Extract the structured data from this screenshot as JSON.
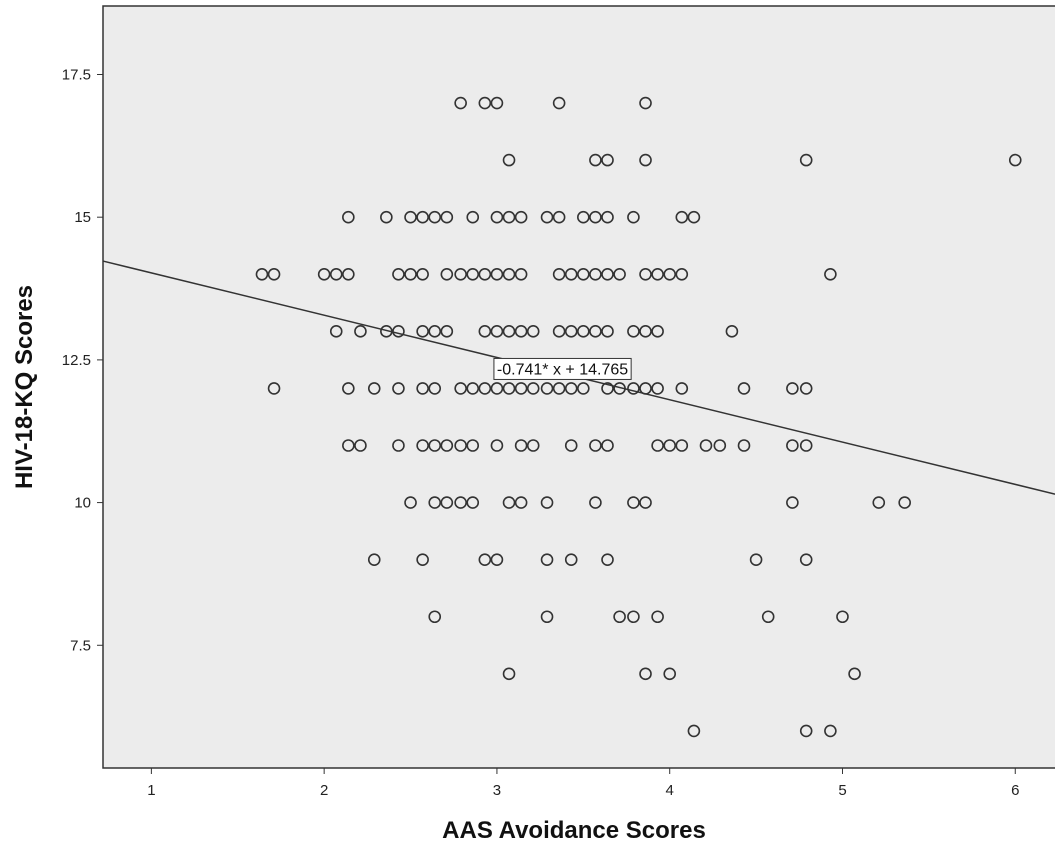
{
  "chart_data": {
    "type": "scatter",
    "title": "",
    "xlabel": "AAS Avoidance Scores",
    "ylabel": "HIV-18-KQ Scores",
    "xlim": [
      0.72,
      6.23
    ],
    "ylim": [
      5.35,
      18.7
    ],
    "x_ticks": [
      1,
      2,
      3,
      4,
      5,
      6
    ],
    "y_ticks": [
      7.5,
      10,
      12.5,
      15,
      17.5
    ],
    "x_tick_labels": [
      "1",
      "2",
      "3",
      "4",
      "5",
      "6"
    ],
    "y_tick_labels": [
      "7.5",
      "10",
      "12.5",
      "15",
      "17.5"
    ],
    "grid": false,
    "colors": {
      "plot_background": "#ececec",
      "marker_stroke": "#333333",
      "line": "#333333"
    },
    "fit_line": {
      "slope": -0.741,
      "intercept": 14.765,
      "label": "-0.741* x + 14.765",
      "label_x": 3.0,
      "label_y": 12.35
    },
    "points": [
      {
        "x": 2.79,
        "y": 17
      },
      {
        "x": 2.93,
        "y": 17
      },
      {
        "x": 3.0,
        "y": 17
      },
      {
        "x": 3.36,
        "y": 17
      },
      {
        "x": 3.86,
        "y": 17
      },
      {
        "x": 3.07,
        "y": 16
      },
      {
        "x": 3.57,
        "y": 16
      },
      {
        "x": 3.64,
        "y": 16
      },
      {
        "x": 3.86,
        "y": 16
      },
      {
        "x": 4.79,
        "y": 16
      },
      {
        "x": 6.0,
        "y": 16
      },
      {
        "x": 2.14,
        "y": 15
      },
      {
        "x": 2.36,
        "y": 15
      },
      {
        "x": 2.5,
        "y": 15
      },
      {
        "x": 2.57,
        "y": 15
      },
      {
        "x": 2.64,
        "y": 15
      },
      {
        "x": 2.71,
        "y": 15
      },
      {
        "x": 2.86,
        "y": 15
      },
      {
        "x": 3.0,
        "y": 15
      },
      {
        "x": 3.07,
        "y": 15
      },
      {
        "x": 3.14,
        "y": 15
      },
      {
        "x": 3.29,
        "y": 15
      },
      {
        "x": 3.36,
        "y": 15
      },
      {
        "x": 3.5,
        "y": 15
      },
      {
        "x": 3.57,
        "y": 15
      },
      {
        "x": 3.64,
        "y": 15
      },
      {
        "x": 3.79,
        "y": 15
      },
      {
        "x": 4.07,
        "y": 15
      },
      {
        "x": 4.14,
        "y": 15
      },
      {
        "x": 1.64,
        "y": 14
      },
      {
        "x": 1.71,
        "y": 14
      },
      {
        "x": 2.0,
        "y": 14
      },
      {
        "x": 2.07,
        "y": 14
      },
      {
        "x": 2.14,
        "y": 14
      },
      {
        "x": 2.43,
        "y": 14
      },
      {
        "x": 2.5,
        "y": 14
      },
      {
        "x": 2.57,
        "y": 14
      },
      {
        "x": 2.71,
        "y": 14
      },
      {
        "x": 2.79,
        "y": 14
      },
      {
        "x": 2.86,
        "y": 14
      },
      {
        "x": 2.93,
        "y": 14
      },
      {
        "x": 3.0,
        "y": 14
      },
      {
        "x": 3.07,
        "y": 14
      },
      {
        "x": 3.14,
        "y": 14
      },
      {
        "x": 3.36,
        "y": 14
      },
      {
        "x": 3.43,
        "y": 14
      },
      {
        "x": 3.5,
        "y": 14
      },
      {
        "x": 3.57,
        "y": 14
      },
      {
        "x": 3.64,
        "y": 14
      },
      {
        "x": 3.71,
        "y": 14
      },
      {
        "x": 3.86,
        "y": 14
      },
      {
        "x": 3.93,
        "y": 14
      },
      {
        "x": 4.0,
        "y": 14
      },
      {
        "x": 4.07,
        "y": 14
      },
      {
        "x": 4.93,
        "y": 14
      },
      {
        "x": 2.07,
        "y": 13
      },
      {
        "x": 2.21,
        "y": 13
      },
      {
        "x": 2.36,
        "y": 13
      },
      {
        "x": 2.43,
        "y": 13
      },
      {
        "x": 2.57,
        "y": 13
      },
      {
        "x": 2.64,
        "y": 13
      },
      {
        "x": 2.71,
        "y": 13
      },
      {
        "x": 2.93,
        "y": 13
      },
      {
        "x": 3.0,
        "y": 13
      },
      {
        "x": 3.07,
        "y": 13
      },
      {
        "x": 3.14,
        "y": 13
      },
      {
        "x": 3.21,
        "y": 13
      },
      {
        "x": 3.36,
        "y": 13
      },
      {
        "x": 3.43,
        "y": 13
      },
      {
        "x": 3.5,
        "y": 13
      },
      {
        "x": 3.57,
        "y": 13
      },
      {
        "x": 3.64,
        "y": 13
      },
      {
        "x": 3.79,
        "y": 13
      },
      {
        "x": 3.86,
        "y": 13
      },
      {
        "x": 3.93,
        "y": 13
      },
      {
        "x": 4.36,
        "y": 13
      },
      {
        "x": 1.71,
        "y": 12
      },
      {
        "x": 2.14,
        "y": 12
      },
      {
        "x": 2.29,
        "y": 12
      },
      {
        "x": 2.43,
        "y": 12
      },
      {
        "x": 2.57,
        "y": 12
      },
      {
        "x": 2.64,
        "y": 12
      },
      {
        "x": 2.79,
        "y": 12
      },
      {
        "x": 2.86,
        "y": 12
      },
      {
        "x": 2.93,
        "y": 12
      },
      {
        "x": 3.0,
        "y": 12
      },
      {
        "x": 3.07,
        "y": 12
      },
      {
        "x": 3.14,
        "y": 12
      },
      {
        "x": 3.21,
        "y": 12
      },
      {
        "x": 3.29,
        "y": 12
      },
      {
        "x": 3.36,
        "y": 12
      },
      {
        "x": 3.43,
        "y": 12
      },
      {
        "x": 3.5,
        "y": 12
      },
      {
        "x": 3.64,
        "y": 12
      },
      {
        "x": 3.71,
        "y": 12
      },
      {
        "x": 3.79,
        "y": 12
      },
      {
        "x": 3.86,
        "y": 12
      },
      {
        "x": 3.93,
        "y": 12
      },
      {
        "x": 4.07,
        "y": 12
      },
      {
        "x": 4.43,
        "y": 12
      },
      {
        "x": 4.71,
        "y": 12
      },
      {
        "x": 4.79,
        "y": 12
      },
      {
        "x": 2.14,
        "y": 11
      },
      {
        "x": 2.21,
        "y": 11
      },
      {
        "x": 2.43,
        "y": 11
      },
      {
        "x": 2.57,
        "y": 11
      },
      {
        "x": 2.64,
        "y": 11
      },
      {
        "x": 2.71,
        "y": 11
      },
      {
        "x": 2.79,
        "y": 11
      },
      {
        "x": 2.86,
        "y": 11
      },
      {
        "x": 3.0,
        "y": 11
      },
      {
        "x": 3.14,
        "y": 11
      },
      {
        "x": 3.21,
        "y": 11
      },
      {
        "x": 3.43,
        "y": 11
      },
      {
        "x": 3.57,
        "y": 11
      },
      {
        "x": 3.64,
        "y": 11
      },
      {
        "x": 3.93,
        "y": 11
      },
      {
        "x": 4.0,
        "y": 11
      },
      {
        "x": 4.07,
        "y": 11
      },
      {
        "x": 4.21,
        "y": 11
      },
      {
        "x": 4.29,
        "y": 11
      },
      {
        "x": 4.43,
        "y": 11
      },
      {
        "x": 4.71,
        "y": 11
      },
      {
        "x": 4.79,
        "y": 11
      },
      {
        "x": 2.5,
        "y": 10
      },
      {
        "x": 2.64,
        "y": 10
      },
      {
        "x": 2.71,
        "y": 10
      },
      {
        "x": 2.79,
        "y": 10
      },
      {
        "x": 2.86,
        "y": 10
      },
      {
        "x": 3.07,
        "y": 10
      },
      {
        "x": 3.14,
        "y": 10
      },
      {
        "x": 3.29,
        "y": 10
      },
      {
        "x": 3.57,
        "y": 10
      },
      {
        "x": 3.79,
        "y": 10
      },
      {
        "x": 3.86,
        "y": 10
      },
      {
        "x": 4.71,
        "y": 10
      },
      {
        "x": 5.21,
        "y": 10
      },
      {
        "x": 5.36,
        "y": 10
      },
      {
        "x": 2.29,
        "y": 9
      },
      {
        "x": 2.57,
        "y": 9
      },
      {
        "x": 2.93,
        "y": 9
      },
      {
        "x": 3.0,
        "y": 9
      },
      {
        "x": 3.29,
        "y": 9
      },
      {
        "x": 3.43,
        "y": 9
      },
      {
        "x": 3.64,
        "y": 9
      },
      {
        "x": 4.5,
        "y": 9
      },
      {
        "x": 4.79,
        "y": 9
      },
      {
        "x": 2.64,
        "y": 8
      },
      {
        "x": 3.29,
        "y": 8
      },
      {
        "x": 3.71,
        "y": 8
      },
      {
        "x": 3.79,
        "y": 8
      },
      {
        "x": 3.93,
        "y": 8
      },
      {
        "x": 4.57,
        "y": 8
      },
      {
        "x": 5.0,
        "y": 8
      },
      {
        "x": 3.07,
        "y": 7
      },
      {
        "x": 3.86,
        "y": 7
      },
      {
        "x": 4.0,
        "y": 7
      },
      {
        "x": 5.07,
        "y": 7
      },
      {
        "x": 4.14,
        "y": 6
      },
      {
        "x": 4.79,
        "y": 6
      },
      {
        "x": 4.93,
        "y": 6
      }
    ]
  }
}
